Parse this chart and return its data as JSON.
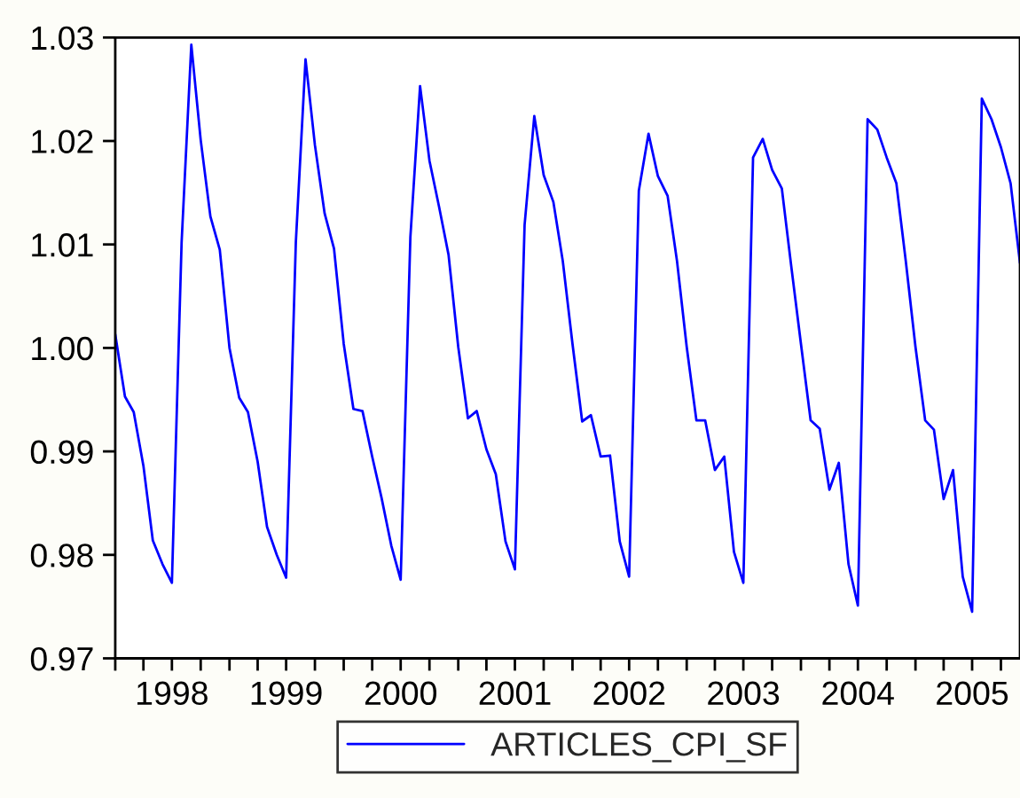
{
  "chart_data": {
    "type": "line",
    "x": [
      "1998-01",
      "1998-02",
      "1998-03",
      "1998-04",
      "1998-05",
      "1998-06",
      "1998-07",
      "1998-08",
      "1998-09",
      "1998-10",
      "1998-11",
      "1998-12",
      "1999-01",
      "1999-02",
      "1999-03",
      "1999-04",
      "1999-05",
      "1999-06",
      "1999-07",
      "1999-08",
      "1999-09",
      "1999-10",
      "1999-11",
      "1999-12",
      "2000-01",
      "2000-02",
      "2000-03",
      "2000-04",
      "2000-05",
      "2000-06",
      "2000-07",
      "2000-08",
      "2000-09",
      "2000-10",
      "2000-11",
      "2000-12",
      "2001-01",
      "2001-02",
      "2001-03",
      "2001-04",
      "2001-05",
      "2001-06",
      "2001-07",
      "2001-08",
      "2001-09",
      "2001-10",
      "2001-11",
      "2001-12",
      "2002-01",
      "2002-02",
      "2002-03",
      "2002-04",
      "2002-05",
      "2002-06",
      "2002-07",
      "2002-08",
      "2002-09",
      "2002-10",
      "2002-11",
      "2002-12",
      "2003-01",
      "2003-02",
      "2003-03",
      "2003-04",
      "2003-05",
      "2003-06",
      "2003-07",
      "2003-08",
      "2003-09",
      "2003-10",
      "2003-11",
      "2003-12",
      "2004-01",
      "2004-02",
      "2004-03",
      "2004-04",
      "2004-05",
      "2004-06",
      "2004-07",
      "2004-08",
      "2004-09",
      "2004-10",
      "2004-11",
      "2004-12",
      "2005-01",
      "2005-02",
      "2005-03",
      "2005-04",
      "2005-05",
      "2005-06",
      "2005-07",
      "2005-08",
      "2005-09",
      "2005-10",
      "2005-11",
      "2005-12"
    ],
    "series": [
      {
        "name": "ARTICLES_CPI_SF",
        "color": "#0000ff",
        "values": [
          1.0013,
          0.9953,
          0.9938,
          0.9886,
          0.9814,
          0.9791,
          0.9773,
          1.0102,
          1.0293,
          1.0201,
          1.0127,
          1.0095,
          1.0,
          0.9952,
          0.9938,
          0.989,
          0.9827,
          0.98,
          0.9778,
          1.0102,
          1.0279,
          1.0196,
          1.013,
          1.0096,
          1.0004,
          0.9941,
          0.9939,
          0.9895,
          0.9855,
          0.9809,
          0.9776,
          1.0107,
          1.0253,
          1.0181,
          1.0136,
          1.009,
          1.0001,
          0.9932,
          0.9939,
          0.9902,
          0.9878,
          0.9813,
          0.9786,
          1.0119,
          1.0224,
          1.0167,
          1.0141,
          1.0084,
          1.0004,
          0.9929,
          0.9935,
          0.9895,
          0.9896,
          0.9813,
          0.9779,
          1.0152,
          1.0207,
          1.0166,
          1.0147,
          1.0084,
          1.0001,
          0.993,
          0.993,
          0.9882,
          0.9895,
          0.9803,
          0.9773,
          1.0184,
          1.0202,
          1.0172,
          1.0154,
          1.0079,
          1.0004,
          0.993,
          0.9922,
          0.9863,
          0.9889,
          0.9791,
          0.9751,
          1.0221,
          1.0211,
          1.0184,
          1.0159,
          1.0084,
          1.0001,
          0.993,
          0.9921,
          0.9854,
          0.9882,
          0.9779,
          0.9745,
          1.0241,
          1.0221,
          1.0194,
          1.0159,
          1.0082
        ]
      }
    ],
    "xlim": [
      "1998-01",
      "2005-12"
    ],
    "xticks": [
      {
        "value": "1998-01",
        "label": null
      },
      {
        "value": "1998-04",
        "label": null
      },
      {
        "value": "1998-07",
        "label": "1998"
      },
      {
        "value": "1998-10",
        "label": null
      },
      {
        "value": "1999-01",
        "label": null
      },
      {
        "value": "1999-04",
        "label": null
      },
      {
        "value": "1999-07",
        "label": "1999"
      },
      {
        "value": "1999-10",
        "label": null
      },
      {
        "value": "2000-01",
        "label": null
      },
      {
        "value": "2000-04",
        "label": null
      },
      {
        "value": "2000-07",
        "label": "2000"
      },
      {
        "value": "2000-10",
        "label": null
      },
      {
        "value": "2001-01",
        "label": null
      },
      {
        "value": "2001-04",
        "label": null
      },
      {
        "value": "2001-07",
        "label": "2001"
      },
      {
        "value": "2001-10",
        "label": null
      },
      {
        "value": "2002-01",
        "label": null
      },
      {
        "value": "2002-04",
        "label": null
      },
      {
        "value": "2002-07",
        "label": "2002"
      },
      {
        "value": "2002-10",
        "label": null
      },
      {
        "value": "2003-01",
        "label": null
      },
      {
        "value": "2003-04",
        "label": null
      },
      {
        "value": "2003-07",
        "label": "2003"
      },
      {
        "value": "2003-10",
        "label": null
      },
      {
        "value": "2004-01",
        "label": null
      },
      {
        "value": "2004-04",
        "label": null
      },
      {
        "value": "2004-07",
        "label": "2004"
      },
      {
        "value": "2004-10",
        "label": null
      },
      {
        "value": "2005-01",
        "label": null
      },
      {
        "value": "2005-04",
        "label": null
      },
      {
        "value": "2005-07",
        "label": "2005"
      },
      {
        "value": "2005-10",
        "label": null
      }
    ],
    "ylim": [
      0.97,
      1.03
    ],
    "yticks": [
      {
        "value": 0.97,
        "label": "0.97"
      },
      {
        "value": 0.98,
        "label": "0.98"
      },
      {
        "value": 0.99,
        "label": "0.99"
      },
      {
        "value": 1.0,
        "label": "1.00"
      },
      {
        "value": 1.01,
        "label": "1.01"
      },
      {
        "value": 1.02,
        "label": "1.02"
      },
      {
        "value": 1.03,
        "label": "1.03"
      }
    ],
    "grid": false,
    "legend": "bottom",
    "marker": "none",
    "line_style": "solid"
  }
}
